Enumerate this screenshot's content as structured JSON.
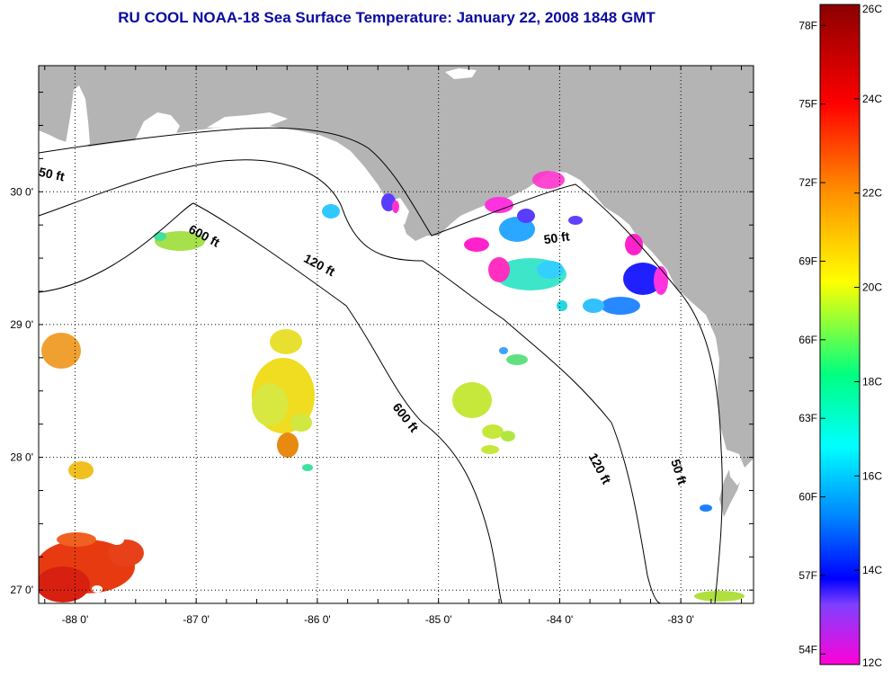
{
  "title": "RU COOL  NOAA-18  Sea Surface Temperature:  January 22, 2008 1848 GMT",
  "map": {
    "lon_range": [
      -88.3,
      -82.4
    ],
    "lat_range": [
      26.9,
      30.95
    ],
    "lon_ticks": [
      {
        "value": -88,
        "label": "-88 0'"
      },
      {
        "value": -87,
        "label": "-87 0'"
      },
      {
        "value": -86,
        "label": "-86 0'"
      },
      {
        "value": -85,
        "label": "-85 0'"
      },
      {
        "value": -84,
        "label": "-84 0'"
      },
      {
        "value": -83,
        "label": "-83 0'"
      }
    ],
    "lat_ticks": [
      {
        "value": 30,
        "label": "30 0'"
      },
      {
        "value": 29,
        "label": "29 0'"
      },
      {
        "value": 28,
        "label": "28 0'"
      },
      {
        "value": 27,
        "label": "27 0'"
      }
    ],
    "grid": "dotted",
    "land_color": "#b4b4b4",
    "depth_labels": [
      {
        "text": "50 ft",
        "lon": -88.2,
        "lat": 30.1,
        "angle": 12
      },
      {
        "text": "600 ft",
        "lon": -86.95,
        "lat": 29.64,
        "angle": 28
      },
      {
        "text": "120 ft",
        "lon": -86.0,
        "lat": 29.42,
        "angle": 28
      },
      {
        "text": "50 ft",
        "lon": -84.02,
        "lat": 29.62,
        "angle": -8
      },
      {
        "text": "600 ft",
        "lon": -85.3,
        "lat": 28.28,
        "angle": 52
      },
      {
        "text": "120 ft",
        "lon": -83.7,
        "lat": 27.9,
        "angle": 62
      },
      {
        "text": "50 ft",
        "lon": -83.05,
        "lat": 27.88,
        "angle": 72
      }
    ]
  },
  "colorbar": {
    "celsius": [
      {
        "value": 26,
        "label": "26C"
      },
      {
        "value": 24,
        "label": "24C"
      },
      {
        "value": 22,
        "label": "22C"
      },
      {
        "value": 20,
        "label": "20C"
      },
      {
        "value": 18,
        "label": "18C"
      },
      {
        "value": 16,
        "label": "16C"
      },
      {
        "value": 14,
        "label": "14C"
      },
      {
        "value": 12,
        "label": "12C"
      }
    ],
    "fahrenheit": [
      {
        "value": 78,
        "label": "78F"
      },
      {
        "value": 75,
        "label": "75F"
      },
      {
        "value": 72,
        "label": "72F"
      },
      {
        "value": 69,
        "label": "69F"
      },
      {
        "value": 66,
        "label": "66F"
      },
      {
        "value": 63,
        "label": "63F"
      },
      {
        "value": 60,
        "label": "60F"
      },
      {
        "value": 57,
        "label": "57F"
      },
      {
        "value": 54,
        "label": "54F"
      }
    ],
    "range_c": [
      12,
      26
    ],
    "stops": [
      "#8b0000",
      "#ff0000",
      "#ff8c00",
      "#ffff00",
      "#00ff80",
      "#00ffff",
      "#0080ff",
      "#0000ff",
      "#ff00ff"
    ]
  }
}
